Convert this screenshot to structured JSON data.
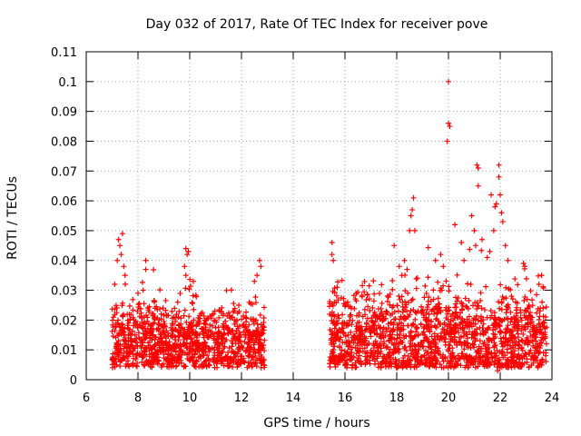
{
  "chart_data": {
    "type": "scatter",
    "title": "Day 032 of 2017, Rate Of TEC Index for receiver pove",
    "xlabel": "GPS time / hours",
    "ylabel": "ROTI / TECUs",
    "xlim": [
      6,
      24
    ],
    "ylim": [
      0,
      0.11
    ],
    "x_ticks": [
      "6",
      "8",
      "10",
      "12",
      "14",
      "16",
      "18",
      "20",
      "22",
      "24"
    ],
    "y_ticks": [
      "0",
      "0.01",
      "0.02",
      "0.03",
      "0.04",
      "0.05",
      "0.06",
      "0.07",
      "0.08",
      "0.09",
      "0.1",
      "0.11"
    ],
    "grid": true,
    "marker": "+",
    "series_color": "#ff0000",
    "segments": [
      {
        "x_start": 7.0,
        "x_end": 12.9,
        "base": 0.012,
        "spread": 0.012
      },
      {
        "x_start": 15.4,
        "x_end": 23.8,
        "base": 0.013,
        "spread": 0.016
      }
    ],
    "points": [
      [
        7.25,
        0.047
      ],
      [
        7.3,
        0.045
      ],
      [
        7.4,
        0.049
      ],
      [
        7.35,
        0.042
      ],
      [
        7.45,
        0.038
      ],
      [
        7.2,
        0.04
      ],
      [
        7.5,
        0.035
      ],
      [
        7.1,
        0.032
      ],
      [
        8.3,
        0.04
      ],
      [
        8.3,
        0.037
      ],
      [
        8.2,
        0.03
      ],
      [
        8.0,
        0.029
      ],
      [
        9.85,
        0.044
      ],
      [
        9.9,
        0.042
      ],
      [
        9.95,
        0.043
      ],
      [
        9.8,
        0.038
      ],
      [
        9.85,
        0.035
      ],
      [
        12.7,
        0.04
      ],
      [
        12.75,
        0.038
      ],
      [
        12.5,
        0.033
      ],
      [
        12.6,
        0.035
      ],
      [
        15.5,
        0.046
      ],
      [
        15.5,
        0.042
      ],
      [
        15.55,
        0.04
      ],
      [
        15.7,
        0.031
      ],
      [
        17.9,
        0.045
      ],
      [
        18.1,
        0.038
      ],
      [
        18.2,
        0.035
      ],
      [
        18.3,
        0.04
      ],
      [
        18.4,
        0.037
      ],
      [
        18.5,
        0.05
      ],
      [
        18.55,
        0.055
      ],
      [
        18.6,
        0.057
      ],
      [
        18.65,
        0.061
      ],
      [
        18.7,
        0.05
      ],
      [
        19.5,
        0.04
      ],
      [
        19.7,
        0.042
      ],
      [
        19.8,
        0.038
      ],
      [
        19.95,
        0.08
      ],
      [
        20.0,
        0.086
      ],
      [
        20.0,
        0.1
      ],
      [
        20.05,
        0.085
      ],
      [
        20.25,
        0.052
      ],
      [
        20.5,
        0.046
      ],
      [
        20.6,
        0.04
      ],
      [
        20.9,
        0.055
      ],
      [
        21.0,
        0.05
      ],
      [
        21.05,
        0.045
      ],
      [
        21.1,
        0.072
      ],
      [
        21.15,
        0.071
      ],
      [
        21.15,
        0.065
      ],
      [
        21.3,
        0.047
      ],
      [
        21.5,
        0.041
      ],
      [
        21.6,
        0.043
      ],
      [
        21.65,
        0.062
      ],
      [
        21.75,
        0.05
      ],
      [
        21.8,
        0.058
      ],
      [
        21.85,
        0.059
      ],
      [
        21.95,
        0.072
      ],
      [
        21.95,
        0.068
      ],
      [
        22.0,
        0.062
      ],
      [
        22.05,
        0.056
      ],
      [
        22.1,
        0.053
      ],
      [
        22.2,
        0.045
      ],
      [
        22.3,
        0.04
      ],
      [
        22.9,
        0.039
      ],
      [
        22.95,
        0.038
      ],
      [
        23.5,
        0.032
      ],
      [
        23.6,
        0.035
      ],
      [
        21.9,
        0.003
      ],
      [
        22.0,
        0.005
      ]
    ]
  }
}
